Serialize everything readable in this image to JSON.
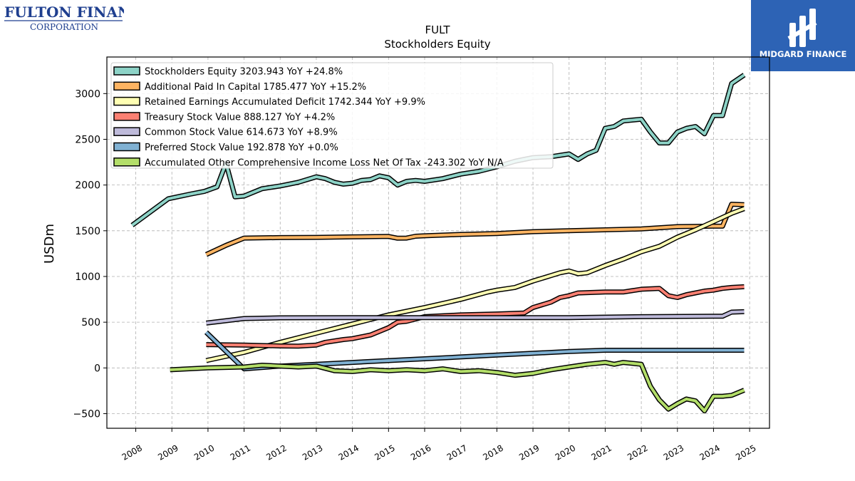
{
  "header": {
    "company_logo_line1": "FULTON FINANCIAL",
    "company_logo_line2": "CORPORATION",
    "brand_badge_text": "MIDGARD FINANCE"
  },
  "chart_data": {
    "type": "line",
    "title": "FULT",
    "subtitle": "Stockholders  Equity",
    "ylabel": "USDm",
    "xlabel": "",
    "xlim": [
      2007.2,
      2025.55
    ],
    "ylim": [
      -660,
      3400
    ],
    "xticks": [
      2008,
      2009,
      2010,
      2011,
      2012,
      2013,
      2014,
      2015,
      2016,
      2017,
      2018,
      2019,
      2020,
      2021,
      2022,
      2023,
      2024,
      2025
    ],
    "yticks": [
      -500,
      0,
      500,
      1000,
      1500,
      2000,
      2500,
      3000
    ],
    "ytick_labels": [
      "−500",
      "0",
      "500",
      "1000",
      "1500",
      "2000",
      "2500",
      "3000"
    ],
    "grid": true,
    "legend_position": "top-left",
    "series": [
      {
        "name": "Stockholders Equity",
        "legend": "Stockholders Equity  3203.943 YoY +24.8%",
        "color": "#8dd3c7",
        "points": [
          [
            2007.9,
            1560
          ],
          [
            2008.9,
            1850
          ],
          [
            2009.5,
            1900
          ],
          [
            2009.9,
            1930
          ],
          [
            2010.25,
            1980
          ],
          [
            2010.5,
            2240
          ],
          [
            2010.75,
            1870
          ],
          [
            2011.0,
            1880
          ],
          [
            2011.5,
            1960
          ],
          [
            2012.0,
            1990
          ],
          [
            2012.5,
            2030
          ],
          [
            2013.0,
            2090
          ],
          [
            2013.25,
            2070
          ],
          [
            2013.5,
            2030
          ],
          [
            2013.75,
            2010
          ],
          [
            2014.0,
            2020
          ],
          [
            2014.25,
            2050
          ],
          [
            2014.5,
            2060
          ],
          [
            2014.75,
            2100
          ],
          [
            2015.0,
            2080
          ],
          [
            2015.25,
            2000
          ],
          [
            2015.5,
            2040
          ],
          [
            2015.75,
            2050
          ],
          [
            2016.0,
            2040
          ],
          [
            2016.5,
            2070
          ],
          [
            2017.0,
            2120
          ],
          [
            2017.5,
            2150
          ],
          [
            2018.0,
            2200
          ],
          [
            2018.5,
            2260
          ],
          [
            2018.75,
            2280
          ],
          [
            2019.0,
            2300
          ],
          [
            2019.5,
            2310
          ],
          [
            2020.0,
            2340
          ],
          [
            2020.25,
            2280
          ],
          [
            2020.5,
            2340
          ],
          [
            2020.75,
            2380
          ],
          [
            2021.0,
            2620
          ],
          [
            2021.25,
            2640
          ],
          [
            2021.5,
            2700
          ],
          [
            2022.0,
            2720
          ],
          [
            2022.25,
            2580
          ],
          [
            2022.5,
            2460
          ],
          [
            2022.75,
            2460
          ],
          [
            2023.0,
            2580
          ],
          [
            2023.25,
            2620
          ],
          [
            2023.5,
            2640
          ],
          [
            2023.75,
            2560
          ],
          [
            2024.0,
            2760
          ],
          [
            2024.25,
            2760
          ],
          [
            2024.5,
            3110
          ],
          [
            2024.85,
            3204
          ]
        ]
      },
      {
        "name": "Additional Paid In Capital",
        "legend": "Additional Paid In Capital  1785.477 YoY +15.2%",
        "color": "#fdb462",
        "points": [
          [
            2009.95,
            1240
          ],
          [
            2010.5,
            1340
          ],
          [
            2011.0,
            1420
          ],
          [
            2012.0,
            1425
          ],
          [
            2013.0,
            1428
          ],
          [
            2014.0,
            1433
          ],
          [
            2015.0,
            1438
          ],
          [
            2015.25,
            1418
          ],
          [
            2015.5,
            1420
          ],
          [
            2015.75,
            1440
          ],
          [
            2016.0,
            1445
          ],
          [
            2017.0,
            1460
          ],
          [
            2018.0,
            1470
          ],
          [
            2019.0,
            1490
          ],
          [
            2020.0,
            1500
          ],
          [
            2021.0,
            1510
          ],
          [
            2022.0,
            1520
          ],
          [
            2023.0,
            1545
          ],
          [
            2024.0,
            1550
          ],
          [
            2024.25,
            1550
          ],
          [
            2024.5,
            1790
          ],
          [
            2024.85,
            1785
          ]
        ]
      },
      {
        "name": "Retained Earnings Accumulated Deficit",
        "legend": "Retained Earnings Accumulated Deficit  1742.344 YoY +9.9%",
        "color": "#ffffb3",
        "points": [
          [
            2009.95,
            80
          ],
          [
            2011.0,
            170
          ],
          [
            2012.0,
            280
          ],
          [
            2013.0,
            380
          ],
          [
            2014.0,
            480
          ],
          [
            2015.0,
            580
          ],
          [
            2016.0,
            660
          ],
          [
            2017.0,
            750
          ],
          [
            2017.75,
            830
          ],
          [
            2018.0,
            850
          ],
          [
            2018.5,
            880
          ],
          [
            2019.0,
            950
          ],
          [
            2019.5,
            1010
          ],
          [
            2019.75,
            1040
          ],
          [
            2020.0,
            1060
          ],
          [
            2020.25,
            1030
          ],
          [
            2020.5,
            1040
          ],
          [
            2020.75,
            1080
          ],
          [
            2021.0,
            1120
          ],
          [
            2021.5,
            1190
          ],
          [
            2022.0,
            1270
          ],
          [
            2022.5,
            1330
          ],
          [
            2023.0,
            1430
          ],
          [
            2023.5,
            1510
          ],
          [
            2024.0,
            1600
          ],
          [
            2024.5,
            1690
          ],
          [
            2024.85,
            1742
          ]
        ]
      },
      {
        "name": "Treasury Stock Value",
        "legend": "Treasury Stock Value  888.127 YoY +4.2%",
        "color": "#fb8072",
        "points": [
          [
            2009.95,
            255
          ],
          [
            2011.0,
            250
          ],
          [
            2012.0,
            240
          ],
          [
            2012.5,
            238
          ],
          [
            2013.0,
            250
          ],
          [
            2013.25,
            280
          ],
          [
            2013.75,
            310
          ],
          [
            2014.0,
            320
          ],
          [
            2014.5,
            360
          ],
          [
            2015.0,
            440
          ],
          [
            2015.25,
            500
          ],
          [
            2015.5,
            510
          ],
          [
            2016.0,
            560
          ],
          [
            2017.0,
            580
          ],
          [
            2018.0,
            590
          ],
          [
            2018.75,
            600
          ],
          [
            2019.0,
            660
          ],
          [
            2019.5,
            720
          ],
          [
            2019.75,
            770
          ],
          [
            2020.0,
            790
          ],
          [
            2020.25,
            820
          ],
          [
            2021.0,
            830
          ],
          [
            2021.5,
            830
          ],
          [
            2022.0,
            860
          ],
          [
            2022.5,
            870
          ],
          [
            2022.75,
            790
          ],
          [
            2023.0,
            770
          ],
          [
            2023.25,
            800
          ],
          [
            2023.5,
            820
          ],
          [
            2023.75,
            840
          ],
          [
            2024.0,
            850
          ],
          [
            2024.25,
            870
          ],
          [
            2024.5,
            880
          ],
          [
            2024.85,
            888
          ]
        ]
      },
      {
        "name": "Common Stock Value",
        "legend": "Common Stock Value  614.673 YoY +8.9%",
        "color": "#bebada",
        "points": [
          [
            2009.95,
            490
          ],
          [
            2011.0,
            540
          ],
          [
            2012.0,
            548
          ],
          [
            2014.0,
            550
          ],
          [
            2016.0,
            550
          ],
          [
            2018.0,
            550
          ],
          [
            2020.0,
            550
          ],
          [
            2022.0,
            560
          ],
          [
            2024.0,
            565
          ],
          [
            2024.25,
            565
          ],
          [
            2024.5,
            610
          ],
          [
            2024.85,
            615
          ]
        ]
      },
      {
        "name": "Preferred Stock Value",
        "legend": "Preferred Stock Value  192.878 YoY +0.0%",
        "color": "#80b1d3",
        "points": [
          [
            2009.95,
            390
          ],
          [
            2011.0,
            -10
          ],
          [
            2012.0,
            20
          ],
          [
            2013.0,
            40
          ],
          [
            2014.0,
            60
          ],
          [
            2015.0,
            80
          ],
          [
            2016.0,
            100
          ],
          [
            2017.0,
            120
          ],
          [
            2018.0,
            140
          ],
          [
            2019.0,
            160
          ],
          [
            2020.0,
            180
          ],
          [
            2021.0,
            193
          ],
          [
            2022.0,
            193
          ],
          [
            2023.0,
            193
          ],
          [
            2024.0,
            193
          ],
          [
            2024.85,
            193
          ]
        ]
      },
      {
        "name": "Accumulated Other Comprehensive Income Loss Net Of Tax",
        "legend": "Accumulated Other Comprehensive Income Loss Net Of Tax  -243.302 YoY N/A",
        "color": "#b3de69",
        "points": [
          [
            2008.95,
            -20
          ],
          [
            2010.0,
            0
          ],
          [
            2011.0,
            10
          ],
          [
            2011.5,
            30
          ],
          [
            2012.0,
            20
          ],
          [
            2012.5,
            10
          ],
          [
            2013.0,
            20
          ],
          [
            2013.5,
            -30
          ],
          [
            2014.0,
            -40
          ],
          [
            2014.5,
            -20
          ],
          [
            2015.0,
            -30
          ],
          [
            2015.5,
            -20
          ],
          [
            2016.0,
            -30
          ],
          [
            2016.5,
            -10
          ],
          [
            2017.0,
            -40
          ],
          [
            2017.5,
            -30
          ],
          [
            2018.0,
            -50
          ],
          [
            2018.5,
            -80
          ],
          [
            2019.0,
            -60
          ],
          [
            2019.5,
            -20
          ],
          [
            2020.0,
            10
          ],
          [
            2020.5,
            40
          ],
          [
            2021.0,
            60
          ],
          [
            2021.25,
            40
          ],
          [
            2021.5,
            60
          ],
          [
            2022.0,
            40
          ],
          [
            2022.25,
            -200
          ],
          [
            2022.5,
            -350
          ],
          [
            2022.75,
            -450
          ],
          [
            2023.0,
            -390
          ],
          [
            2023.25,
            -340
          ],
          [
            2023.5,
            -360
          ],
          [
            2023.75,
            -470
          ],
          [
            2024.0,
            -310
          ],
          [
            2024.25,
            -310
          ],
          [
            2024.5,
            -300
          ],
          [
            2024.85,
            -243
          ]
        ]
      }
    ]
  }
}
